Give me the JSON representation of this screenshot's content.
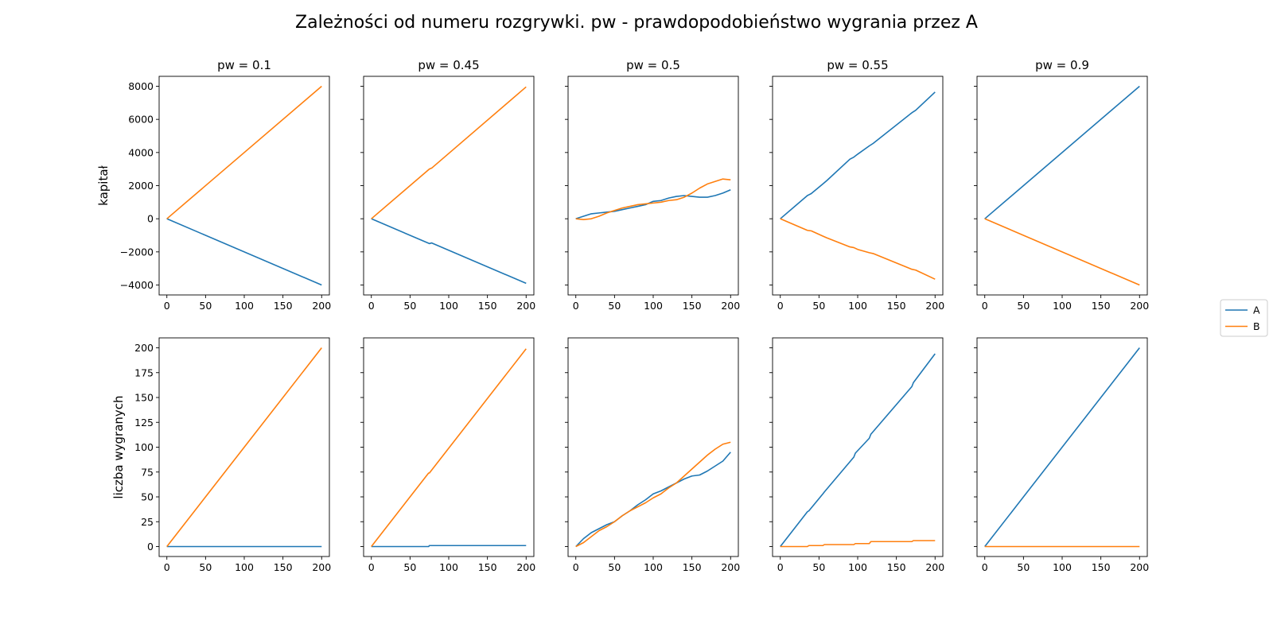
{
  "title": "Zależności od numeru rozgrywki. pw - prawdopodobieństwo wygrania przez A",
  "legend": {
    "placement": "right",
    "entries": [
      {
        "name": "A",
        "color": "#1f77b4"
      },
      {
        "name": "B",
        "color": "#ff7f0e"
      }
    ]
  },
  "chart_data": [
    {
      "type": "line",
      "title": "pw = 0.1",
      "ylabel": "kapitał",
      "xlim": [
        -10,
        210
      ],
      "ylim": [
        -4600,
        8600
      ],
      "xticks": [
        "0",
        "50",
        "100",
        "150",
        "200"
      ],
      "yticks": [
        "8000",
        "6000",
        "4000",
        "2000",
        "0",
        "−2000",
        "−4000"
      ],
      "series": [
        {
          "name": "A",
          "x": [
            0,
            200
          ],
          "values": [
            0,
            -4000
          ]
        },
        {
          "name": "B",
          "x": [
            0,
            200
          ],
          "values": [
            0,
            8000
          ]
        }
      ]
    },
    {
      "type": "line",
      "title": "pw = 0.45",
      "ylabel": "",
      "xlim": [
        -10,
        210
      ],
      "ylim": [
        -4600,
        8600
      ],
      "xticks": [
        "0",
        "50",
        "100",
        "150",
        "200"
      ],
      "yticks": [],
      "series": [
        {
          "name": "A",
          "x": [
            0,
            75,
            78,
            200
          ],
          "values": [
            0,
            -1500,
            -1460,
            -3900
          ]
        },
        {
          "name": "B",
          "x": [
            0,
            75,
            78,
            200
          ],
          "values": [
            0,
            3000,
            3060,
            7960
          ]
        }
      ]
    },
    {
      "type": "line",
      "title": "pw = 0.5",
      "ylabel": "",
      "xlim": [
        -10,
        210
      ],
      "ylim": [
        -4600,
        8600
      ],
      "xticks": [
        "0",
        "50",
        "100",
        "150",
        "200"
      ],
      "yticks": [],
      "series": [
        {
          "name": "A",
          "x": [
            0,
            10,
            20,
            30,
            40,
            50,
            60,
            70,
            80,
            90,
            100,
            110,
            120,
            130,
            140,
            150,
            160,
            170,
            180,
            190,
            200
          ],
          "values": [
            0,
            150,
            300,
            350,
            400,
            450,
            550,
            650,
            750,
            850,
            1050,
            1100,
            1250,
            1350,
            1400,
            1350,
            1300,
            1300,
            1400,
            1550,
            1750
          ]
        },
        {
          "name": "B",
          "x": [
            0,
            10,
            20,
            30,
            40,
            50,
            60,
            70,
            80,
            90,
            100,
            110,
            120,
            130,
            140,
            150,
            160,
            170,
            180,
            190,
            200
          ],
          "values": [
            0,
            -50,
            0,
            150,
            350,
            500,
            650,
            750,
            850,
            900,
            950,
            1000,
            1100,
            1150,
            1300,
            1550,
            1850,
            2100,
            2250,
            2400,
            2350
          ]
        }
      ]
    },
    {
      "type": "line",
      "title": "pw = 0.55",
      "ylabel": "",
      "xlim": [
        -10,
        210
      ],
      "ylim": [
        -4600,
        8600
      ],
      "xticks": [
        "0",
        "50",
        "100",
        "150",
        "200"
      ],
      "yticks": [],
      "series": [
        {
          "name": "A",
          "x": [
            0,
            20,
            35,
            40,
            55,
            60,
            90,
            95,
            100,
            115,
            120,
            170,
            175,
            200
          ],
          "values": [
            0,
            800,
            1400,
            1520,
            2100,
            2300,
            3600,
            3720,
            3900,
            4400,
            4550,
            6400,
            6550,
            7650
          ]
        },
        {
          "name": "B",
          "x": [
            0,
            20,
            35,
            40,
            55,
            60,
            90,
            95,
            100,
            115,
            120,
            170,
            175,
            200
          ],
          "values": [
            0,
            -400,
            -700,
            -730,
            -1050,
            -1150,
            -1700,
            -1740,
            -1850,
            -2050,
            -2100,
            -3050,
            -3100,
            -3650
          ]
        }
      ]
    },
    {
      "type": "line",
      "title": "pw = 0.9",
      "ylabel": "",
      "xlim": [
        -10,
        210
      ],
      "ylim": [
        -4600,
        8600
      ],
      "xticks": [
        "0",
        "50",
        "100",
        "150",
        "200"
      ],
      "yticks": [],
      "series": [
        {
          "name": "A",
          "x": [
            0,
            200
          ],
          "values": [
            0,
            8000
          ]
        },
        {
          "name": "B",
          "x": [
            0,
            200
          ],
          "values": [
            0,
            -4000
          ]
        }
      ]
    },
    {
      "type": "line",
      "title": "",
      "ylabel": "liczba wygranych",
      "xlim": [
        -10,
        210
      ],
      "ylim": [
        -10,
        210
      ],
      "xticks": [
        "0",
        "50",
        "100",
        "150",
        "200"
      ],
      "yticks": [
        "200",
        "175",
        "150",
        "125",
        "100",
        "75",
        "50",
        "25",
        "0"
      ],
      "series": [
        {
          "name": "A",
          "x": [
            0,
            200
          ],
          "values": [
            0,
            0
          ]
        },
        {
          "name": "B",
          "x": [
            0,
            200
          ],
          "values": [
            0,
            200
          ]
        }
      ]
    },
    {
      "type": "line",
      "title": "",
      "ylabel": "",
      "xlim": [
        -10,
        210
      ],
      "ylim": [
        -10,
        210
      ],
      "xticks": [
        "0",
        "50",
        "100",
        "150",
        "200"
      ],
      "yticks": [],
      "series": [
        {
          "name": "A",
          "x": [
            0,
            74,
            75,
            200
          ],
          "values": [
            0,
            0,
            1,
            1
          ]
        },
        {
          "name": "B",
          "x": [
            0,
            74,
            75,
            200
          ],
          "values": [
            0,
            74,
            74,
            199
          ]
        }
      ]
    },
    {
      "type": "line",
      "title": "",
      "ylabel": "",
      "xlim": [
        -10,
        210
      ],
      "ylim": [
        -10,
        210
      ],
      "xticks": [
        "0",
        "50",
        "100",
        "150",
        "200"
      ],
      "yticks": [],
      "series": [
        {
          "name": "A",
          "x": [
            0,
            10,
            20,
            30,
            40,
            50,
            60,
            70,
            80,
            90,
            100,
            110,
            120,
            130,
            140,
            150,
            160,
            170,
            180,
            190,
            200
          ],
          "values": [
            0,
            8,
            14,
            18,
            22,
            25,
            31,
            36,
            42,
            47,
            53,
            56,
            60,
            64,
            68,
            71,
            72,
            76,
            81,
            86,
            95
          ]
        },
        {
          "name": "B",
          "x": [
            0,
            10,
            20,
            30,
            40,
            50,
            60,
            70,
            80,
            90,
            100,
            110,
            120,
            130,
            140,
            150,
            160,
            170,
            180,
            190,
            200
          ],
          "values": [
            0,
            4,
            10,
            16,
            20,
            25,
            31,
            36,
            40,
            44,
            49,
            53,
            59,
            64,
            71,
            78,
            85,
            92,
            98,
            103,
            105
          ]
        }
      ]
    },
    {
      "type": "line",
      "title": "",
      "ylabel": "",
      "xlim": [
        -10,
        210
      ],
      "ylim": [
        -10,
        210
      ],
      "xticks": [
        "0",
        "50",
        "100",
        "150",
        "200"
      ],
      "yticks": [],
      "series": [
        {
          "name": "A",
          "x": [
            0,
            35,
            37,
            55,
            57,
            95,
            97,
            115,
            117,
            170,
            172,
            200
          ],
          "values": [
            0,
            35,
            36,
            53,
            55,
            90,
            94,
            109,
            113,
            161,
            165,
            194
          ]
        },
        {
          "name": "B",
          "x": [
            0,
            35,
            37,
            55,
            57,
            95,
            97,
            115,
            117,
            170,
            172,
            200
          ],
          "values": [
            0,
            0,
            1,
            1,
            2,
            2,
            3,
            3,
            5,
            5,
            6,
            6
          ]
        }
      ]
    },
    {
      "type": "line",
      "title": "",
      "ylabel": "",
      "xlim": [
        -10,
        210
      ],
      "ylim": [
        -10,
        210
      ],
      "xticks": [
        "0",
        "50",
        "100",
        "150",
        "200"
      ],
      "yticks": [],
      "series": [
        {
          "name": "A",
          "x": [
            0,
            200
          ],
          "values": [
            0,
            200
          ]
        },
        {
          "name": "B",
          "x": [
            0,
            200
          ],
          "values": [
            0,
            0
          ]
        }
      ]
    }
  ]
}
